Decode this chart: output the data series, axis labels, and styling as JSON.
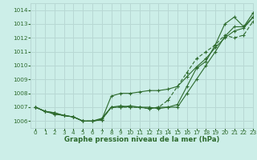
{
  "title": "Graphe pression niveau de la mer (hPa)",
  "bg_color": "#cceee8",
  "grid_color": "#b8d8d4",
  "line_color": "#2d6a2d",
  "xlim": [
    -0.5,
    23
  ],
  "ylim": [
    1005.5,
    1014.5
  ],
  "yticks": [
    1006,
    1007,
    1008,
    1009,
    1010,
    1011,
    1012,
    1013,
    1014
  ],
  "xticks": [
    0,
    1,
    2,
    3,
    4,
    5,
    6,
    7,
    8,
    9,
    10,
    11,
    12,
    13,
    14,
    15,
    16,
    17,
    18,
    19,
    20,
    21,
    22,
    23
  ],
  "series": {
    "line_smooth": [
      1007.0,
      1006.7,
      1006.6,
      1006.4,
      1006.3,
      1006.0,
      1006.0,
      1006.1,
      1007.8,
      1008.0,
      1008.0,
      1008.1,
      1008.2,
      1008.2,
      1008.3,
      1008.5,
      1009.2,
      1009.9,
      1010.5,
      1011.3,
      1012.0,
      1012.5,
      1012.7,
      1013.5
    ],
    "line_wavy": [
      1007.0,
      1006.7,
      1006.6,
      1006.4,
      1006.3,
      1006.0,
      1006.0,
      1006.2,
      1007.0,
      1007.0,
      1007.1,
      1007.0,
      1006.9,
      1007.0,
      1007.0,
      1007.0,
      1008.0,
      1009.0,
      1010.0,
      1011.0,
      1012.1,
      1012.8,
      1012.8,
      1013.5
    ],
    "line_top": [
      1007.0,
      1006.7,
      1006.5,
      1006.4,
      1006.3,
      1006.0,
      1006.0,
      1006.1,
      1007.0,
      1007.1,
      1007.0,
      1007.0,
      1007.0,
      1006.9,
      1007.0,
      1007.2,
      1008.5,
      1009.8,
      1010.3,
      1011.5,
      1013.0,
      1013.5,
      1012.8,
      1013.8
    ],
    "line_dotted": [
      1007.0,
      1006.7,
      1006.5,
      1006.4,
      1006.3,
      1006.0,
      1006.0,
      1006.1,
      1007.0,
      1007.0,
      1007.0,
      1007.0,
      1006.9,
      1007.0,
      1007.5,
      1008.5,
      1009.5,
      1010.5,
      1011.0,
      1011.5,
      1012.2,
      1012.0,
      1012.2,
      1013.2
    ]
  },
  "ylabel_fontsize": 5.5,
  "xlabel_fontsize": 6.2
}
